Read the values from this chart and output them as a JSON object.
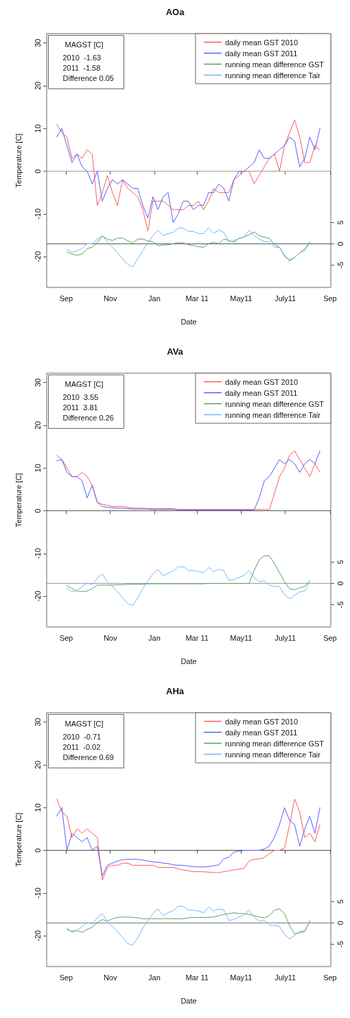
{
  "chart_data": [
    {
      "type": "line",
      "title": "AOa",
      "xlabel": "Date",
      "ylabel": "Temperature [C]",
      "annotations": [
        "MAGST [C]",
        "2010  -1.63",
        "2011  -1.58",
        "Difference 0.05"
      ],
      "x": [
        "2010-08-19",
        "2010-08-26",
        "2010-09-02",
        "2010-09-09",
        "2010-09-16",
        "2010-09-23",
        "2010-09-30",
        "2010-10-07",
        "2010-10-14",
        "2010-10-21",
        "2010-10-28",
        "2010-11-04",
        "2010-11-11",
        "2010-11-18",
        "2010-11-25",
        "2010-12-02",
        "2010-12-09",
        "2010-12-16",
        "2010-12-23",
        "2010-12-30",
        "2011-01-06",
        "2011-01-13",
        "2011-01-20",
        "2011-01-27",
        "2011-02-03",
        "2011-02-10",
        "2011-02-17",
        "2011-02-24",
        "2011-03-03",
        "2011-03-10",
        "2011-03-17",
        "2011-03-24",
        "2011-03-31",
        "2011-04-07",
        "2011-04-14",
        "2011-04-21",
        "2011-04-28",
        "2011-05-05",
        "2011-05-12",
        "2011-05-19",
        "2011-05-26",
        "2011-06-02",
        "2011-06-09",
        "2011-06-16",
        "2011-06-23",
        "2011-06-30",
        "2011-07-07",
        "2011-07-14",
        "2011-07-21",
        "2011-07-28",
        "2011-08-04",
        "2011-08-11",
        "2011-08-18"
      ],
      "series": [
        {
          "name": "daily mean GST 2010",
          "color": "#ff5a5a",
          "values": [
            11,
            9,
            8,
            3,
            4,
            3,
            5,
            4,
            -8,
            -5,
            -1,
            -5,
            -8,
            -2,
            -4,
            -5,
            -6,
            -9,
            -14,
            -7,
            -7,
            -7,
            -8,
            -9,
            -9,
            -9,
            -8,
            -8,
            -7,
            -9,
            -7,
            -4,
            -5,
            -5,
            -5,
            -2,
            -1,
            0,
            0,
            -3,
            -1,
            1,
            3,
            4,
            0,
            6,
            9,
            12,
            8,
            2,
            2,
            6,
            5
          ]
        },
        {
          "name": "daily mean GST 2011",
          "color": "#5a5aff",
          "values": [
            8,
            10,
            6,
            2,
            4,
            1,
            0,
            -3,
            0,
            -7,
            -4,
            -2,
            -3,
            -2,
            -3,
            -4,
            -4,
            -8,
            -11,
            -6,
            -9,
            -6,
            -5,
            -12,
            -10,
            -7,
            -7,
            -9,
            -8,
            -8,
            -5,
            -5,
            -3,
            -4,
            -7,
            -2,
            0,
            0,
            1,
            2,
            5,
            3,
            3,
            4,
            5,
            6,
            8,
            7,
            1,
            3,
            8,
            5,
            10
          ]
        },
        {
          "name": "running mean difference GST",
          "color": "#5aa05a",
          "axis": "y2",
          "values": [
            null,
            null,
            -1.9,
            -2.4,
            -2.7,
            -2.4,
            -1.1,
            -0.8,
            0.3,
            1.8,
            1.1,
            0.8,
            1.3,
            1.4,
            0.7,
            0.2,
            1.1,
            1.1,
            0.7,
            0.5,
            -0.4,
            -0.3,
            -0.2,
            0,
            0.3,
            0.2,
            -0.2,
            -0.4,
            -0.7,
            -0.8,
            0,
            0.4,
            0,
            1.1,
            0.8,
            0.4,
            1.3,
            1.6,
            2.1,
            2.8,
            1.9,
            1.6,
            1.3,
            -0.2,
            -0.8,
            -2.9,
            -4,
            -3.2,
            -2.1,
            -1.5,
            0.3,
            null,
            null
          ]
        },
        {
          "name": "running mean difference Tair",
          "color": "#72b6ff",
          "axis": "y2",
          "values": [
            null,
            null,
            -1.3,
            -2,
            -1.6,
            -1.1,
            0,
            0,
            1.1,
            1.9,
            0.5,
            -0.8,
            -2.1,
            -3.5,
            -4.8,
            -5.4,
            -3.5,
            -1.6,
            0.3,
            1.9,
            3.2,
            1.9,
            2.4,
            2.7,
            3.7,
            3.7,
            2.9,
            2.9,
            2.4,
            2.4,
            3.7,
            2.5,
            3.2,
            2.7,
            0.5,
            0.8,
            1.2,
            1.6,
            3.2,
            1.9,
            1.1,
            0.5,
            0.5,
            -0.8,
            -0.8,
            -2.7,
            -3.7,
            -3.2,
            -2.1,
            -1.1,
            0.5,
            null,
            null
          ]
        }
      ],
      "xlim": [
        "2010-08-05",
        "2011-09-02"
      ],
      "xticks": [
        {
          "value": "2010-09-01",
          "label": "Sep"
        },
        {
          "value": "2010-11-01",
          "label": "Nov"
        },
        {
          "value": "2011-01-01",
          "label": "Jan"
        },
        {
          "value": "2011-03-01",
          "label": "Mar 11"
        },
        {
          "value": "2011-05-01",
          "label": "May11"
        },
        {
          "value": "2011-07-01",
          "label": "July11"
        },
        {
          "value": "2011-09-01",
          "label": "Sep"
        }
      ],
      "ylim": [
        -27.2,
        32.2
      ],
      "yticks": [
        -20,
        -10,
        0,
        10,
        20,
        30
      ],
      "y2lim": [
        -10.2,
        49.2
      ],
      "y2ticks": [
        -5,
        0,
        5
      ],
      "ref_lines": [
        {
          "axis": "y",
          "value": 0,
          "color": "#999999"
        },
        {
          "axis": "y2",
          "value": 0,
          "color": "#555555"
        }
      ],
      "grid": false,
      "legend": "top right",
      "marker": "none",
      "line_style": "solid"
    },
    {
      "type": "line",
      "title": "AVa",
      "xlabel": "Date",
      "ylabel": "Temperature [C]",
      "annotations": [
        "MAGST [C]",
        "2010  3.55",
        "2011  3.81",
        "Difference 0.26"
      ],
      "x": [
        "2010-08-19",
        "2010-08-26",
        "2010-09-02",
        "2010-09-09",
        "2010-09-16",
        "2010-09-23",
        "2010-09-30",
        "2010-10-07",
        "2010-10-14",
        "2010-10-21",
        "2010-10-28",
        "2010-11-04",
        "2010-11-11",
        "2010-11-18",
        "2010-11-25",
        "2010-12-02",
        "2010-12-09",
        "2010-12-16",
        "2010-12-23",
        "2010-12-30",
        "2011-01-06",
        "2011-01-13",
        "2011-01-20",
        "2011-01-27",
        "2011-02-03",
        "2011-02-10",
        "2011-02-17",
        "2011-02-24",
        "2011-03-03",
        "2011-03-10",
        "2011-03-17",
        "2011-03-24",
        "2011-03-31",
        "2011-04-07",
        "2011-04-14",
        "2011-04-21",
        "2011-04-28",
        "2011-05-05",
        "2011-05-12",
        "2011-05-19",
        "2011-05-26",
        "2011-06-02",
        "2011-06-09",
        "2011-06-16",
        "2011-06-23",
        "2011-06-30",
        "2011-07-07",
        "2011-07-14",
        "2011-07-21",
        "2011-07-28",
        "2011-08-04",
        "2011-08-11",
        "2011-08-18"
      ],
      "series": [
        {
          "name": "daily mean GST 2010",
          "color": "#ff5a5a",
          "values": [
            13,
            12,
            10,
            8,
            8,
            9,
            8,
            6,
            2,
            1.5,
            1.3,
            1,
            1,
            1,
            0.8,
            0.6,
            0.6,
            0.6,
            0.5,
            0.5,
            0.5,
            0.5,
            0.5,
            0.5,
            0.3,
            0.3,
            0.3,
            0.3,
            0.3,
            0.3,
            0.3,
            0.3,
            0.3,
            0.3,
            0.3,
            0.3,
            0.3,
            0.3,
            0.3,
            0.3,
            0.3,
            0.3,
            0.2,
            4,
            8,
            10,
            13,
            14,
            12,
            10,
            8,
            11,
            9
          ]
        },
        {
          "name": "daily mean GST 2011",
          "color": "#5a5aff",
          "values": [
            11.7,
            12,
            9,
            8,
            8,
            7,
            3,
            6,
            2,
            1,
            0.8,
            0.7,
            0.6,
            0.6,
            0.5,
            0.4,
            0.4,
            0.4,
            0.4,
            0.3,
            0.3,
            0.3,
            0.3,
            0.3,
            0.2,
            0.2,
            0.2,
            0.2,
            0.2,
            0.2,
            0.2,
            0.2,
            0.2,
            0.2,
            0.2,
            0.2,
            0.2,
            0.2,
            0.2,
            0.2,
            3,
            7,
            8,
            10,
            12,
            11,
            12,
            11,
            9,
            11,
            12,
            11,
            14
          ]
        },
        {
          "name": "running mean difference GST",
          "color": "#5aa05a",
          "axis": "y2",
          "values": [
            null,
            null,
            -0.5,
            -1.2,
            -1.8,
            -1.9,
            -1.8,
            -1.2,
            -0.4,
            -0.4,
            -0.4,
            -0.4,
            -0.3,
            -0.3,
            -0.2,
            -0.2,
            -0.2,
            -0.2,
            -0.1,
            -0.1,
            -0.1,
            -0.1,
            -0.1,
            -0.1,
            -0.1,
            -0.1,
            -0.1,
            -0.1,
            -0.1,
            -0.1,
            0,
            0,
            0,
            0,
            0,
            0,
            0,
            0,
            0,
            3,
            5.5,
            6.5,
            6.4,
            4.7,
            2.5,
            0.4,
            -1.2,
            -1.5,
            -1,
            -0.7,
            0.6,
            null,
            null
          ]
        },
        {
          "name": "running mean difference Tair",
          "color": "#72b6ff",
          "axis": "y2",
          "values": [
            null,
            null,
            -1.2,
            -2,
            -1.7,
            -0.7,
            0.1,
            -0.2,
            1.2,
            2.2,
            0.4,
            -0.7,
            -2,
            -3.4,
            -4.7,
            -5.2,
            -3.4,
            -1.2,
            0.6,
            2.2,
            3.3,
            1.7,
            2.4,
            2.9,
            3.9,
            3.9,
            3,
            3,
            2.8,
            2.5,
            3.7,
            2.8,
            3.3,
            3,
            0.7,
            0.9,
            1.4,
            1.9,
            3,
            1.4,
            0.4,
            0.6,
            -0.4,
            -0.7,
            -0.7,
            -2.6,
            -3.6,
            -2.8,
            -2,
            -1.8,
            0.6,
            null,
            null
          ]
        }
      ],
      "xlim": [
        "2010-08-05",
        "2011-09-02"
      ],
      "xticks": [
        {
          "value": "2010-09-01",
          "label": "Sep"
        },
        {
          "value": "2010-11-01",
          "label": "Nov"
        },
        {
          "value": "2011-01-01",
          "label": "Jan"
        },
        {
          "value": "2011-03-01",
          "label": "Mar 11"
        },
        {
          "value": "2011-05-01",
          "label": "May11"
        },
        {
          "value": "2011-07-01",
          "label": "July11"
        },
        {
          "value": "2011-09-01",
          "label": "Sep"
        }
      ],
      "ylim": [
        -27.2,
        32.2
      ],
      "yticks": [
        -20,
        -10,
        0,
        10,
        20,
        30
      ],
      "y2lim": [
        -10.2,
        49.2
      ],
      "y2ticks": [
        -5,
        0,
        5
      ],
      "ref_lines": [
        {
          "axis": "y",
          "value": 0,
          "color": "#555555"
        },
        {
          "axis": "y2",
          "value": 0,
          "color": "#999999"
        }
      ],
      "grid": false,
      "legend": "top right",
      "marker": "none",
      "line_style": "solid"
    },
    {
      "type": "line",
      "title": "AHa",
      "xlabel": "Date",
      "ylabel": "Temperature [C]",
      "annotations": [
        "MAGST [C]",
        "2010  -0.71",
        "2011  -0.02",
        "Difference 0.69"
      ],
      "x": [
        "2010-08-19",
        "2010-08-26",
        "2010-09-02",
        "2010-09-09",
        "2010-09-16",
        "2010-09-23",
        "2010-09-30",
        "2010-10-07",
        "2010-10-14",
        "2010-10-21",
        "2010-10-28",
        "2010-11-04",
        "2010-11-11",
        "2010-11-18",
        "2010-11-25",
        "2010-12-02",
        "2010-12-09",
        "2010-12-16",
        "2010-12-23",
        "2010-12-30",
        "2011-01-06",
        "2011-01-13",
        "2011-01-20",
        "2011-01-27",
        "2011-02-03",
        "2011-02-10",
        "2011-02-17",
        "2011-02-24",
        "2011-03-03",
        "2011-03-10",
        "2011-03-17",
        "2011-03-24",
        "2011-03-31",
        "2011-04-07",
        "2011-04-14",
        "2011-04-21",
        "2011-04-28",
        "2011-05-05",
        "2011-05-12",
        "2011-05-19",
        "2011-05-26",
        "2011-06-02",
        "2011-06-09",
        "2011-06-16",
        "2011-06-23",
        "2011-06-30",
        "2011-07-07",
        "2011-07-14",
        "2011-07-21",
        "2011-07-28",
        "2011-08-04",
        "2011-08-11",
        "2011-08-18"
      ],
      "series": [
        {
          "name": "daily mean GST 2010",
          "color": "#ff5a5a",
          "values": [
            12,
            9,
            8,
            3,
            5,
            4,
            5,
            4,
            3,
            -7,
            -4,
            -3.5,
            -3.5,
            -3,
            -3,
            -3.5,
            -3.5,
            -3.5,
            -3.5,
            -3.5,
            -4,
            -4,
            -4,
            -4,
            -4.3,
            -4.6,
            -4.8,
            -5,
            -5,
            -5,
            -5.1,
            -5.2,
            -5.2,
            -5,
            -4.8,
            -4.6,
            -4.4,
            -4.2,
            -2.5,
            -2.1,
            -2,
            -1.7,
            -0.8,
            0,
            0,
            0.5,
            6,
            12,
            9,
            3,
            4,
            2,
            6
          ]
        },
        {
          "name": "daily mean GST 2011",
          "color": "#5a5aff",
          "values": [
            8,
            10,
            0,
            4,
            3,
            2,
            3,
            0,
            1,
            -6,
            -3.5,
            -3,
            -2.5,
            -2.2,
            -2.1,
            -2.1,
            -2.1,
            -2.3,
            -2.5,
            -2.7,
            -2.8,
            -3,
            -3.1,
            -3.4,
            -3.5,
            -3.5,
            -3.7,
            -3.8,
            -3.9,
            -3.9,
            -3.8,
            -3.6,
            -3.4,
            -2,
            -1.6,
            -0.4,
            -0.2,
            0,
            0,
            0,
            0,
            0.3,
            1,
            3,
            6,
            10,
            7,
            6,
            1,
            5,
            8,
            4,
            10
          ]
        },
        {
          "name": "running mean difference GST",
          "color": "#5aa05a",
          "axis": "y2",
          "values": [
            null,
            null,
            -1.5,
            -1.9,
            -1.8,
            -2.2,
            -1.5,
            -1,
            0.1,
            0.8,
            0.4,
            1,
            1.3,
            1.4,
            1.4,
            1.3,
            1.2,
            1,
            1,
            1,
            1,
            1,
            1,
            1,
            1,
            1,
            1.2,
            1.3,
            1.3,
            1.3,
            1.3,
            1.4,
            1.7,
            2,
            2.2,
            2.4,
            2.2,
            2.2,
            2,
            1.7,
            1.4,
            1.2,
            1.7,
            3,
            3.3,
            2.2,
            -0.7,
            -2.6,
            -2.3,
            -2,
            0.4,
            null,
            null
          ]
        },
        {
          "name": "running mean difference Tair",
          "color": "#72b6ff",
          "axis": "y2",
          "values": [
            null,
            null,
            -1.2,
            -2.2,
            -1.7,
            -0.9,
            0.1,
            -0.2,
            1.2,
            2.2,
            0.3,
            -0.8,
            -2,
            -3.4,
            -4.8,
            -5.2,
            -3.4,
            -1.2,
            0.6,
            2.2,
            3.3,
            1.7,
            2.4,
            2.9,
            3.9,
            3.9,
            3,
            3,
            2.8,
            2.4,
            3.7,
            2.8,
            3.3,
            3,
            0.6,
            0.8,
            1.4,
            1.9,
            3,
            1.4,
            0.4,
            0.6,
            -0.5,
            -0.6,
            -0.8,
            -2.7,
            -3.7,
            -2.9,
            -2,
            -1.8,
            0.6,
            null,
            null
          ]
        }
      ],
      "xlim": [
        "2010-08-05",
        "2011-09-02"
      ],
      "xticks": [
        {
          "value": "2010-09-01",
          "label": "Sep"
        },
        {
          "value": "2010-11-01",
          "label": "Nov"
        },
        {
          "value": "2011-01-01",
          "label": "Jan"
        },
        {
          "value": "2011-03-01",
          "label": "Mar 11"
        },
        {
          "value": "2011-05-01",
          "label": "May11"
        },
        {
          "value": "2011-07-01",
          "label": "July11"
        },
        {
          "value": "2011-09-01",
          "label": "Sep"
        }
      ],
      "ylim": [
        -27.2,
        32.2
      ],
      "yticks": [
        -20,
        -10,
        0,
        10,
        20,
        30
      ],
      "y2lim": [
        -10.2,
        49.2
      ],
      "y2ticks": [
        -5,
        0,
        5
      ],
      "ref_lines": [
        {
          "axis": "y",
          "value": 0,
          "color": "#444444"
        },
        {
          "axis": "y2",
          "value": 0,
          "color": "#777777"
        }
      ],
      "grid": false,
      "legend": "top right",
      "marker": "none",
      "line_style": "solid"
    }
  ]
}
